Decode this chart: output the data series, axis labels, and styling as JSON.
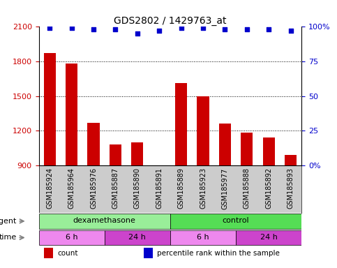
{
  "title": "GDS2802 / 1429763_at",
  "samples": [
    "GSM185924",
    "GSM185964",
    "GSM185976",
    "GSM185887",
    "GSM185890",
    "GSM185891",
    "GSM185889",
    "GSM185923",
    "GSM185977",
    "GSM185888",
    "GSM185892",
    "GSM185893"
  ],
  "counts": [
    1870,
    1780,
    1270,
    1080,
    1100,
    870,
    1610,
    1500,
    1260,
    1185,
    1140,
    990
  ],
  "percentiles": [
    99,
    99,
    98,
    98,
    95,
    97,
    99,
    99,
    98,
    98,
    98,
    97
  ],
  "bar_color": "#cc0000",
  "dot_color": "#0000cc",
  "ylim_left": [
    900,
    2100
  ],
  "ylim_right": [
    0,
    100
  ],
  "yticks_left": [
    900,
    1200,
    1500,
    1800,
    2100
  ],
  "yticks_right": [
    0,
    25,
    50,
    75,
    100
  ],
  "hgrid_values": [
    1200,
    1500,
    1800
  ],
  "agent_groups": [
    {
      "label": "dexamethasone",
      "start": 0,
      "end": 6,
      "color": "#99ee99"
    },
    {
      "label": "control",
      "start": 6,
      "end": 12,
      "color": "#55dd55"
    }
  ],
  "time_groups": [
    {
      "label": "6 h",
      "start": 0,
      "end": 3,
      "color": "#ee88ee"
    },
    {
      "label": "24 h",
      "start": 3,
      "end": 6,
      "color": "#cc44cc"
    },
    {
      "label": "6 h",
      "start": 6,
      "end": 9,
      "color": "#ee88ee"
    },
    {
      "label": "24 h",
      "start": 9,
      "end": 12,
      "color": "#cc44cc"
    }
  ],
  "legend_items": [
    {
      "color": "#cc0000",
      "label": "count"
    },
    {
      "color": "#0000cc",
      "label": "percentile rank within the sample"
    }
  ],
  "xlabel_agent": "agent",
  "xlabel_time": "time",
  "xticklabel_bg": "#cccccc",
  "plot_bg": "#ffffff"
}
